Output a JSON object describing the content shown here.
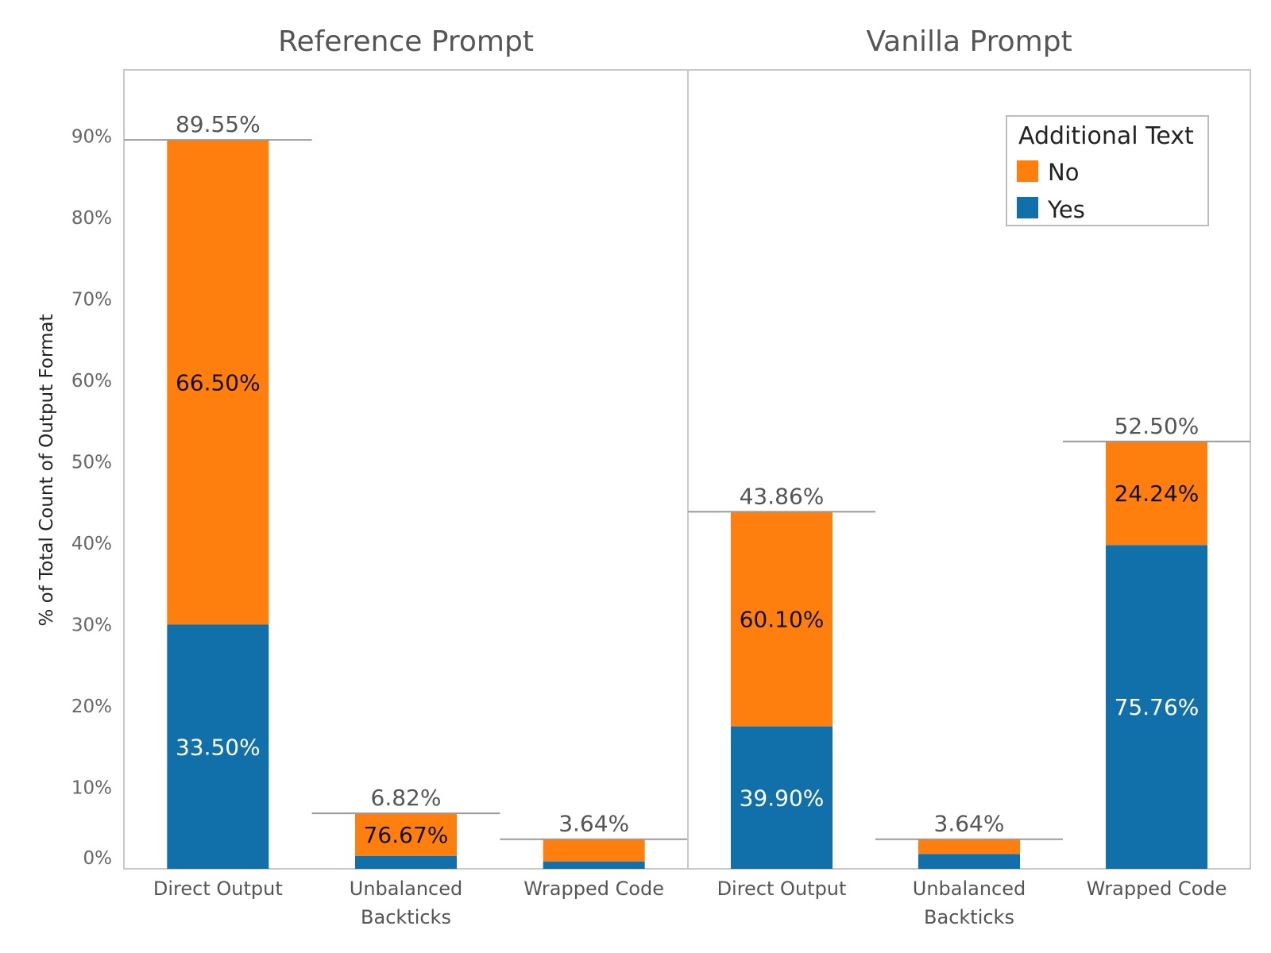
{
  "chart_data": {
    "type": "bar",
    "stacked": true,
    "ylabel": "% of Total Count of Output Format",
    "ylim": [
      0,
      98
    ],
    "yticks": [
      0,
      10,
      20,
      30,
      40,
      50,
      60,
      70,
      80,
      90
    ],
    "ytick_labels": [
      "0%",
      "10%",
      "20%",
      "30%",
      "40%",
      "50%",
      "60%",
      "70%",
      "80%",
      "90%"
    ],
    "legend": {
      "title": "Additional Text",
      "placement": "top-right",
      "entries": [
        {
          "name": "No",
          "color": "#ff7f0e"
        },
        {
          "name": "Yes",
          "color": "#1170aa"
        }
      ]
    },
    "panels": [
      {
        "title": "Reference Prompt",
        "categories": [
          {
            "lines": [
              "Direct Output"
            ]
          },
          {
            "lines": [
              "Unbalanced",
              "Backticks"
            ]
          },
          {
            "lines": [
              "Wrapped Code"
            ]
          }
        ],
        "totals": [
          89.55,
          6.82,
          3.64
        ],
        "total_labels": [
          "89.55%",
          "6.82%",
          "3.64%"
        ],
        "series": [
          {
            "name": "Yes",
            "share": [
              33.5,
              23.33,
              25.0
            ],
            "labels": [
              "33.50%",
              "",
              ""
            ]
          },
          {
            "name": "No",
            "share": [
              66.5,
              76.67,
              75.0
            ],
            "labels": [
              "66.50%",
              "76.67%",
              ""
            ]
          }
        ]
      },
      {
        "title": "Vanilla Prompt",
        "categories": [
          {
            "lines": [
              "Direct Output"
            ]
          },
          {
            "lines": [
              "Unbalanced",
              "Backticks"
            ]
          },
          {
            "lines": [
              "Wrapped Code"
            ]
          }
        ],
        "totals": [
          43.86,
          3.64,
          52.5
        ],
        "total_labels": [
          "43.86%",
          "3.64%",
          "52.50%"
        ],
        "series": [
          {
            "name": "Yes",
            "share": [
              39.9,
              50.0,
              75.76
            ],
            "labels": [
              "39.90%",
              "",
              "75.76%"
            ]
          },
          {
            "name": "No",
            "share": [
              60.1,
              50.0,
              24.24
            ],
            "labels": [
              "60.10%",
              "",
              "24.24%"
            ]
          }
        ]
      }
    ]
  }
}
